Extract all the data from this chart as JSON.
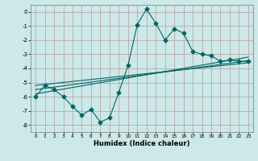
{
  "xlabel": "Humidex (Indice chaleur)",
  "bg_color": "#cce8e8",
  "grid_color": "#b8a8a8",
  "line_color": "#006666",
  "xlim": [
    -0.5,
    23.5
  ],
  "ylim": [
    -8.5,
    0.5
  ],
  "yticks": [
    0,
    -1,
    -2,
    -3,
    -4,
    -5,
    -6,
    -7,
    -8
  ],
  "xticks": [
    0,
    1,
    2,
    3,
    4,
    5,
    6,
    7,
    8,
    9,
    10,
    11,
    12,
    13,
    14,
    15,
    16,
    17,
    18,
    19,
    20,
    21,
    22,
    23
  ],
  "main_x": [
    0,
    1,
    2,
    3,
    4,
    5,
    6,
    7,
    8,
    9,
    10,
    11,
    12,
    13,
    14,
    15,
    16,
    17,
    18,
    19,
    20,
    21,
    22,
    23
  ],
  "main_y": [
    -6.0,
    -5.2,
    -5.5,
    -6.0,
    -6.7,
    -7.3,
    -6.9,
    -7.8,
    -7.5,
    -5.7,
    -3.8,
    -0.9,
    0.2,
    -0.8,
    -2.0,
    -1.2,
    -1.5,
    -2.8,
    -3.0,
    -3.1,
    -3.5,
    -3.4,
    -3.5,
    -3.5
  ],
  "line1_x": [
    0,
    23
  ],
  "line1_y": [
    -5.8,
    -3.2
  ],
  "line2_x": [
    0,
    23
  ],
  "line2_y": [
    -5.5,
    -3.45
  ],
  "line3_x": [
    0,
    23
  ],
  "line3_y": [
    -5.2,
    -3.6
  ],
  "marker_size": 2.5,
  "lw": 0.8
}
